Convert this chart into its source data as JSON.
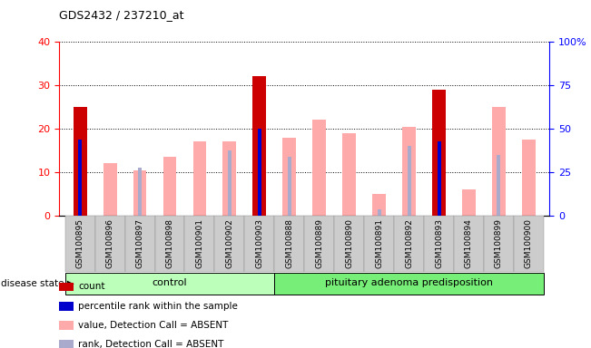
{
  "title": "GDS2432 / 237210_at",
  "samples": [
    "GSM100895",
    "GSM100896",
    "GSM100897",
    "GSM100898",
    "GSM100901",
    "GSM100902",
    "GSM100903",
    "GSM100888",
    "GSM100889",
    "GSM100890",
    "GSM100891",
    "GSM100892",
    "GSM100893",
    "GSM100894",
    "GSM100899",
    "GSM100900"
  ],
  "count": [
    25,
    0,
    0,
    0,
    0,
    0,
    32,
    0,
    0,
    0,
    0,
    0,
    29,
    0,
    0,
    0
  ],
  "percentile_rank": [
    17.5,
    0,
    0,
    0,
    0,
    0,
    20,
    0,
    0,
    0,
    0,
    0,
    17,
    0,
    0,
    0
  ],
  "value_absent": [
    0,
    12,
    10.5,
    13.5,
    17,
    17,
    0,
    18,
    22,
    19,
    5,
    20.5,
    0,
    6,
    25,
    17.5
  ],
  "rank_absent": [
    0,
    0,
    11,
    0,
    0,
    15,
    0,
    13.5,
    0,
    0,
    1.5,
    16,
    17,
    0,
    14,
    0
  ],
  "control_count": 7,
  "disease_count": 9,
  "group1_label": "control",
  "group2_label": "pituitary adenoma predisposition",
  "ylim_left": [
    0,
    40
  ],
  "ylim_right": [
    0,
    100
  ],
  "yticks_left": [
    0,
    10,
    20,
    30,
    40
  ],
  "yticks_right": [
    0,
    25,
    50,
    75,
    100
  ],
  "ytick_labels_right": [
    "0",
    "25",
    "50",
    "75",
    "100%"
  ],
  "color_count": "#cc0000",
  "color_percentile": "#0000cc",
  "color_value_absent": "#ffaaaa",
  "color_rank_absent": "#aaaacc",
  "bg_xticklabels": "#cccccc",
  "bg_control": "#bbffbb",
  "bg_disease": "#77ee77",
  "legend_items": [
    "count",
    "percentile rank within the sample",
    "value, Detection Call = ABSENT",
    "rank, Detection Call = ABSENT"
  ],
  "disease_state_label": "disease state",
  "wide_bar_width": 0.45,
  "narrow_bar_width": 0.12
}
